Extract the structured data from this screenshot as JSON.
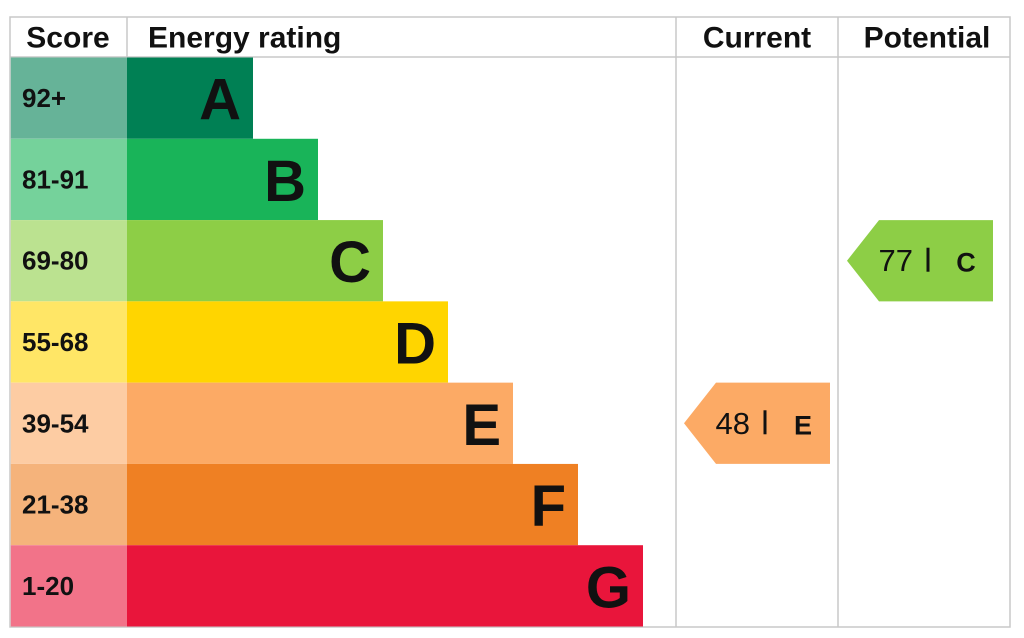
{
  "chart_data": {
    "type": "epc",
    "headers": {
      "score": "Score",
      "rating": "Energy rating",
      "current": "Current",
      "potential": "Potential"
    },
    "bands": [
      {
        "score": "92+",
        "letter": "A",
        "color": "#008054"
      },
      {
        "score": "81-91",
        "letter": "B",
        "color": "#19b459"
      },
      {
        "score": "69-80",
        "letter": "C",
        "color": "#8dce46"
      },
      {
        "score": "55-68",
        "letter": "D",
        "color": "#ffd500"
      },
      {
        "score": "39-54",
        "letter": "E",
        "color": "#fcaa65"
      },
      {
        "score": "21-38",
        "letter": "F",
        "color": "#ef8023"
      },
      {
        "score": "1-20",
        "letter": "G",
        "color": "#e9153b"
      }
    ],
    "current": {
      "value": 48,
      "letter": "E"
    },
    "potential": {
      "value": 77,
      "letter": "C"
    }
  }
}
